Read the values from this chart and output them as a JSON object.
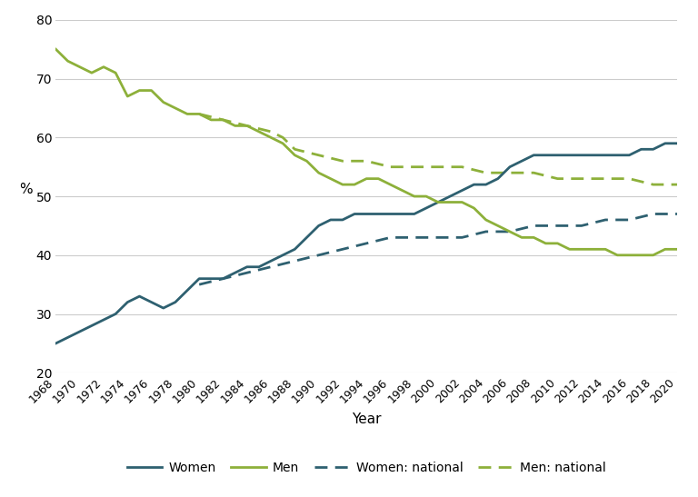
{
  "years": [
    1968,
    1969,
    1970,
    1971,
    1972,
    1973,
    1974,
    1975,
    1976,
    1977,
    1978,
    1979,
    1980,
    1981,
    1982,
    1983,
    1984,
    1985,
    1986,
    1987,
    1988,
    1989,
    1990,
    1991,
    1992,
    1993,
    1994,
    1995,
    1996,
    1997,
    1998,
    1999,
    2000,
    2001,
    2002,
    2003,
    2004,
    2005,
    2006,
    2007,
    2008,
    2009,
    2010,
    2011,
    2012,
    2013,
    2014,
    2015,
    2016,
    2017,
    2018,
    2019,
    2020
  ],
  "women": [
    25,
    26,
    27,
    28,
    29,
    30,
    32,
    33,
    32,
    31,
    32,
    34,
    36,
    36,
    36,
    37,
    38,
    38,
    39,
    40,
    41,
    43,
    45,
    46,
    46,
    47,
    47,
    47,
    47,
    47,
    47,
    48,
    49,
    50,
    51,
    52,
    52,
    53,
    55,
    56,
    57,
    57,
    57,
    57,
    57,
    57,
    57,
    57,
    57,
    58,
    58,
    59,
    59
  ],
  "men": [
    75,
    73,
    72,
    71,
    72,
    71,
    67,
    68,
    68,
    66,
    65,
    64,
    64,
    63,
    63,
    62,
    62,
    61,
    60,
    59,
    57,
    56,
    54,
    53,
    52,
    52,
    53,
    53,
    52,
    51,
    50,
    50,
    49,
    49,
    49,
    48,
    46,
    45,
    44,
    43,
    43,
    42,
    42,
    41,
    41,
    41,
    41,
    40,
    40,
    40,
    40,
    41,
    41
  ],
  "women_national_years": [
    1980,
    1981,
    1982,
    1983,
    1984,
    1985,
    1986,
    1987,
    1988,
    1989,
    1990,
    1991,
    1992,
    1993,
    1994,
    1995,
    1996,
    1997,
    1998,
    1999,
    2000,
    2001,
    2002,
    2003,
    2004,
    2005,
    2006,
    2007,
    2008,
    2009,
    2010,
    2011,
    2012,
    2013,
    2014,
    2015,
    2016,
    2017,
    2018,
    2019,
    2020
  ],
  "women_national": [
    35,
    35.5,
    36,
    36.5,
    37,
    37.5,
    38,
    38.5,
    39,
    39.5,
    40,
    40.5,
    41,
    41.5,
    42,
    42.5,
    43,
    43,
    43,
    43,
    43,
    43,
    43,
    43.5,
    44,
    44,
    44,
    44.5,
    45,
    45,
    45,
    45,
    45,
    45.5,
    46,
    46,
    46,
    46.5,
    47,
    47,
    47
  ],
  "men_national_years": [
    1980,
    1981,
    1982,
    1983,
    1984,
    1985,
    1986,
    1987,
    1988,
    1989,
    1990,
    1991,
    1992,
    1993,
    1994,
    1995,
    1996,
    1997,
    1998,
    1999,
    2000,
    2001,
    2002,
    2003,
    2004,
    2005,
    2006,
    2007,
    2008,
    2009,
    2010,
    2011,
    2012,
    2013,
    2014,
    2015,
    2016,
    2017,
    2018,
    2019,
    2020
  ],
  "men_national": [
    64,
    63.5,
    63,
    62.5,
    62,
    61.5,
    61,
    60,
    58,
    57.5,
    57,
    56.5,
    56,
    56,
    56,
    55.5,
    55,
    55,
    55,
    55,
    55,
    55,
    55,
    54.5,
    54,
    54,
    54,
    54,
    54,
    53.5,
    53,
    53,
    53,
    53,
    53,
    53,
    53,
    52.5,
    52,
    52,
    52
  ],
  "women_color": "#2e6070",
  "men_color": "#8db03a",
  "women_national_color": "#2e6070",
  "men_national_color": "#8db03a",
  "xlabel": "Year",
  "ylabel": "%",
  "ylim": [
    20,
    80
  ],
  "yticks": [
    20,
    30,
    40,
    50,
    60,
    70,
    80
  ],
  "xtick_years": [
    1968,
    1970,
    1972,
    1974,
    1976,
    1978,
    1980,
    1982,
    1984,
    1986,
    1988,
    1990,
    1992,
    1994,
    1996,
    1998,
    2000,
    2002,
    2004,
    2006,
    2008,
    2010,
    2012,
    2014,
    2016,
    2018,
    2020
  ],
  "xtick_labels": [
    "1968",
    "1970",
    "1972",
    "1974",
    "1976",
    "1978",
    "1980",
    "1982",
    "1984",
    "1986",
    "1988",
    "1990",
    "1992",
    "1994",
    "1996",
    "1998",
    "2000",
    "2002",
    "2004",
    "2006",
    "2008",
    "2010",
    "2012",
    "2014",
    "2016",
    "2018",
    "2020"
  ],
  "background_color": "#ffffff",
  "grid_color": "#cccccc",
  "legend_labels": [
    "Women",
    "Men",
    "Women: national",
    "Men: national"
  ],
  "linewidth": 2.0
}
